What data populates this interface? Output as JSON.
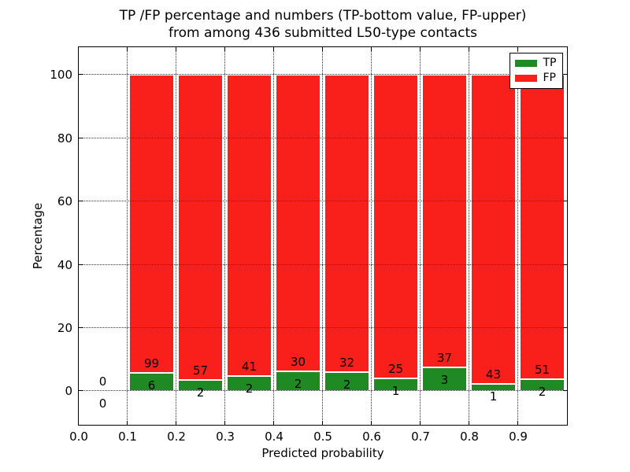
{
  "chart_data": {
    "type": "bar",
    "stacked": true,
    "title_line1": "TP /FP percentage and numbers (TP-bottom value, FP-upper)",
    "title_line2": "from among 436 submitted L50-type contacts",
    "xlabel": "Predicted probability",
    "ylabel": "Percentage",
    "total_contacts": 436,
    "xlim": [
      0.0,
      1.0
    ],
    "ylim": [
      -10.7,
      108.7
    ],
    "bin_width": 0.1,
    "xtick_labels": [
      "0.0",
      "0.1",
      "0.2",
      "0.3",
      "0.4",
      "0.5",
      "0.6",
      "0.7",
      "0.8",
      "0.9"
    ],
    "ytick_values": [
      0,
      20,
      40,
      60,
      80,
      100
    ],
    "grid_style": "dotted",
    "grid_above_bars": true,
    "legend": {
      "position": "upper-right",
      "items": [
        {
          "label": "TP",
          "color": "#1f8a23"
        },
        {
          "label": "FP",
          "color": "#f91f1a"
        }
      ]
    },
    "bins": [
      {
        "x0": 0.0,
        "x1": 0.1,
        "tp": 0,
        "fp": 0,
        "tp_pct": 0,
        "fp_pct": 0,
        "has_bar": false
      },
      {
        "x0": 0.1,
        "x1": 0.2,
        "tp": 6,
        "fp": 99,
        "tp_pct": 5.71,
        "fp_pct": 94.29,
        "has_bar": true
      },
      {
        "x0": 0.2,
        "x1": 0.3,
        "tp": 2,
        "fp": 57,
        "tp_pct": 3.39,
        "fp_pct": 96.61,
        "has_bar": true
      },
      {
        "x0": 0.3,
        "x1": 0.4,
        "tp": 2,
        "fp": 41,
        "tp_pct": 4.65,
        "fp_pct": 95.35,
        "has_bar": true
      },
      {
        "x0": 0.4,
        "x1": 0.5,
        "tp": 2,
        "fp": 30,
        "tp_pct": 6.25,
        "fp_pct": 93.75,
        "has_bar": true
      },
      {
        "x0": 0.5,
        "x1": 0.6,
        "tp": 2,
        "fp": 32,
        "tp_pct": 5.88,
        "fp_pct": 94.12,
        "has_bar": true
      },
      {
        "x0": 0.6,
        "x1": 0.7,
        "tp": 1,
        "fp": 25,
        "tp_pct": 3.85,
        "fp_pct": 96.15,
        "has_bar": true
      },
      {
        "x0": 0.7,
        "x1": 0.8,
        "tp": 3,
        "fp": 37,
        "tp_pct": 7.5,
        "fp_pct": 92.5,
        "has_bar": true
      },
      {
        "x0": 0.8,
        "x1": 0.9,
        "tp": 1,
        "fp": 43,
        "tp_pct": 2.27,
        "fp_pct": 97.73,
        "has_bar": true
      },
      {
        "x0": 0.9,
        "x1": 1.0,
        "tp": 2,
        "fp": 51,
        "tp_pct": 3.77,
        "fp_pct": 96.23,
        "has_bar": true
      }
    ],
    "colors": {
      "tp": "#1f8a23",
      "fp": "#f91f1a",
      "grid": "#2b2b2b",
      "text": "#000000",
      "background": "#ffffff"
    }
  }
}
